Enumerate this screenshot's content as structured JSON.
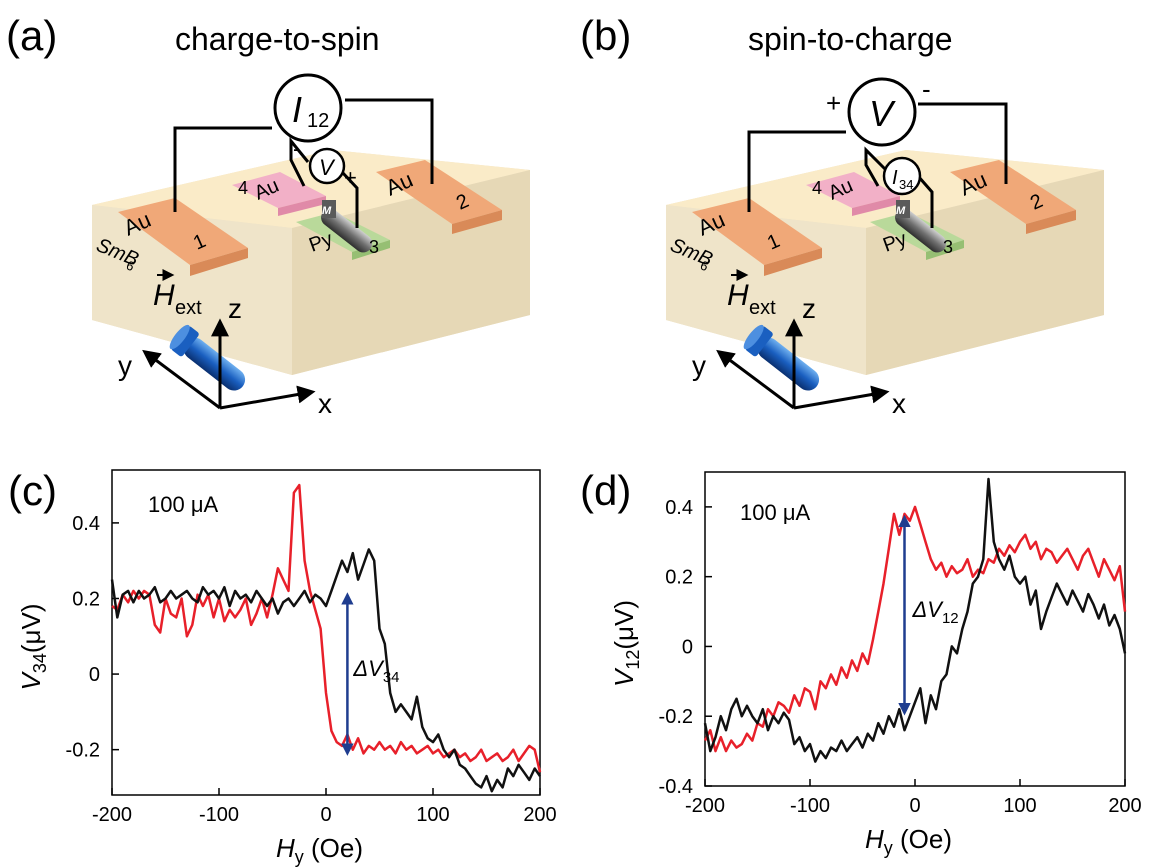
{
  "panels": {
    "a": {
      "letter": "(a)",
      "title": "charge-to-spin",
      "meter_main": {
        "symbol": "I",
        "sub": "12"
      },
      "meter_small": {
        "symbol": "V",
        "sub": ""
      },
      "small_plus": "+",
      "small_minus": "-",
      "substrate_label": {
        "base": "SmB",
        "sub": "6"
      },
      "au_label": "Au",
      "py_label": "Py",
      "m_label": "M",
      "field_label": {
        "base": "H",
        "sub": "ext"
      },
      "contacts": {
        "c1": "1",
        "c2": "2",
        "c3": "3",
        "c4": "4"
      },
      "axes": {
        "z": "z",
        "y": "y",
        "x": "x"
      }
    },
    "b": {
      "letter": "(b)",
      "title": "spin-to-charge",
      "meter_main": {
        "symbol": "V",
        "sub": ""
      },
      "main_plus": "+",
      "main_minus": "-",
      "meter_small": {
        "symbol": "I",
        "sub": "34"
      },
      "substrate_label": {
        "base": "SmB",
        "sub": "6"
      },
      "au_label": "Au",
      "py_label": "Py",
      "m_label": "M",
      "field_label": {
        "base": "H",
        "sub": "ext"
      },
      "contacts": {
        "c1": "1",
        "c2": "2",
        "c3": "3",
        "c4": "4"
      },
      "axes": {
        "z": "z",
        "y": "y",
        "x": "x"
      }
    },
    "c": {
      "letter": "(c)"
    },
    "d": {
      "letter": "(d)"
    }
  },
  "colors": {
    "red_series": "#e8202a",
    "black_series": "#111111",
    "arrow": "#1f3d8f",
    "au": "#f0a878",
    "py": "#b9d99a",
    "substrate_top": "#faebc8",
    "substrate_side": "#ece0c0"
  },
  "chart_data": [
    {
      "type": "line",
      "annotation": "100 μA",
      "delta_label": {
        "base": "ΔV",
        "sub": "34"
      },
      "xlabel": {
        "base": "H",
        "sub": "y",
        "unit": " (Oe)"
      },
      "ylabel": {
        "base": "V",
        "sub": "34",
        "unit": "(μV)"
      },
      "xlim": [
        -200,
        200
      ],
      "ylim": [
        -0.32,
        0.54
      ],
      "xticks": [
        -200,
        -100,
        0,
        100,
        200
      ],
      "xtick_labels": [
        "-200",
        "-100",
        "0",
        "100",
        "200"
      ],
      "yticks": [
        -0.2,
        0,
        0.2,
        0.4
      ],
      "ytick_labels": [
        "-0.2",
        "0",
        "0.2",
        "0.4"
      ],
      "delta_arrow": {
        "x": 20,
        "y_from": 0.2,
        "y_to": -0.2
      },
      "series": [
        {
          "color": "red",
          "x": [
            -200,
            -195,
            -190,
            -185,
            -180,
            -175,
            -170,
            -165,
            -160,
            -155,
            -150,
            -145,
            -140,
            -135,
            -130,
            -125,
            -120,
            -115,
            -110,
            -105,
            -100,
            -95,
            -90,
            -85,
            -80,
            -75,
            -70,
            -65,
            -60,
            -55,
            -50,
            -45,
            -40,
            -35,
            -30,
            -25,
            -20,
            -15,
            -10,
            -5,
            0,
            5,
            10,
            15,
            20,
            25,
            30,
            35,
            40,
            45,
            50,
            55,
            60,
            65,
            70,
            75,
            80,
            85,
            90,
            95,
            100,
            105,
            110,
            115,
            120,
            125,
            130,
            135,
            140,
            145,
            150,
            155,
            160,
            165,
            170,
            175,
            180,
            185,
            190,
            195,
            200
          ],
          "y": [
            0.18,
            0.17,
            0.21,
            0.19,
            0.22,
            0.2,
            0.22,
            0.21,
            0.13,
            0.11,
            0.2,
            0.16,
            0.15,
            0.2,
            0.1,
            0.13,
            0.21,
            0.18,
            0.21,
            0.15,
            0.2,
            0.14,
            0.17,
            0.15,
            0.17,
            0.2,
            0.13,
            0.16,
            0.2,
            0.15,
            0.21,
            0.28,
            0.25,
            0.22,
            0.48,
            0.5,
            0.3,
            0.22,
            0.17,
            0.12,
            -0.05,
            -0.15,
            -0.18,
            -0.19,
            -0.16,
            -0.2,
            -0.17,
            -0.21,
            -0.19,
            -0.2,
            -0.18,
            -0.2,
            -0.19,
            -0.21,
            -0.18,
            -0.2,
            -0.19,
            -0.21,
            -0.2,
            -0.19,
            -0.21,
            -0.2,
            -0.22,
            -0.21,
            -0.2,
            -0.22,
            -0.21,
            -0.23,
            -0.22,
            -0.2,
            -0.23,
            -0.22,
            -0.21,
            -0.23,
            -0.22,
            -0.2,
            -0.23,
            -0.21,
            -0.19,
            -0.2,
            -0.26
          ]
        },
        {
          "color": "black",
          "x": [
            -200,
            -195,
            -190,
            -185,
            -180,
            -175,
            -170,
            -165,
            -160,
            -155,
            -150,
            -145,
            -140,
            -135,
            -130,
            -125,
            -120,
            -115,
            -110,
            -105,
            -100,
            -95,
            -90,
            -85,
            -80,
            -75,
            -70,
            -65,
            -60,
            -55,
            -50,
            -45,
            -40,
            -35,
            -30,
            -25,
            -20,
            -15,
            -10,
            -5,
            0,
            5,
            10,
            15,
            20,
            25,
            30,
            35,
            40,
            45,
            50,
            55,
            60,
            65,
            70,
            75,
            80,
            85,
            90,
            95,
            100,
            105,
            110,
            115,
            120,
            125,
            130,
            135,
            140,
            145,
            150,
            155,
            160,
            165,
            170,
            175,
            180,
            185,
            190,
            195,
            200
          ],
          "y": [
            0.25,
            0.15,
            0.21,
            0.22,
            0.19,
            0.22,
            0.2,
            0.21,
            0.23,
            0.19,
            0.2,
            0.22,
            0.2,
            0.21,
            0.22,
            0.2,
            0.19,
            0.23,
            0.21,
            0.22,
            0.2,
            0.23,
            0.18,
            0.22,
            0.2,
            0.21,
            0.19,
            0.22,
            0.2,
            0.18,
            0.2,
            0.16,
            0.19,
            0.2,
            0.18,
            0.2,
            0.22,
            0.19,
            0.21,
            0.2,
            0.18,
            0.22,
            0.26,
            0.3,
            0.27,
            0.32,
            0.25,
            0.29,
            0.33,
            0.3,
            0.12,
            0.08,
            -0.05,
            -0.1,
            -0.08,
            -0.1,
            -0.12,
            -0.06,
            -0.14,
            -0.17,
            -0.18,
            -0.16,
            -0.2,
            -0.22,
            -0.2,
            -0.24,
            -0.25,
            -0.27,
            -0.29,
            -0.3,
            -0.27,
            -0.31,
            -0.28,
            -0.3,
            -0.25,
            -0.27,
            -0.24,
            -0.26,
            -0.28,
            -0.25,
            -0.27
          ]
        }
      ]
    },
    {
      "type": "line",
      "annotation": "100 μA",
      "delta_label": {
        "base": "ΔV",
        "sub": "12"
      },
      "xlabel": {
        "base": "H",
        "sub": "y",
        "unit": " (Oe)"
      },
      "ylabel": {
        "base": "V",
        "sub": "12",
        "unit": "(μV)"
      },
      "xlim": [
        -200,
        200
      ],
      "ylim": [
        -0.4,
        0.5
      ],
      "xticks": [
        -200,
        -100,
        0,
        100,
        200
      ],
      "xtick_labels": [
        "-200",
        "-100",
        "0",
        "100",
        "200"
      ],
      "yticks": [
        -0.4,
        -0.2,
        0,
        0.2,
        0.4
      ],
      "ytick_labels": [
        "-0.4",
        "-0.2",
        "0",
        "0.2",
        "0.4"
      ],
      "delta_arrow": {
        "x": -10,
        "y_from": 0.36,
        "y_to": -0.18
      },
      "series": [
        {
          "color": "red",
          "x": [
            -200,
            -195,
            -190,
            -185,
            -180,
            -175,
            -170,
            -165,
            -160,
            -155,
            -150,
            -145,
            -140,
            -135,
            -130,
            -125,
            -120,
            -115,
            -110,
            -105,
            -100,
            -95,
            -90,
            -85,
            -80,
            -75,
            -70,
            -65,
            -60,
            -55,
            -50,
            -45,
            -40,
            -35,
            -30,
            -25,
            -20,
            -15,
            -10,
            -5,
            0,
            5,
            10,
            15,
            20,
            25,
            30,
            35,
            40,
            45,
            50,
            55,
            60,
            65,
            70,
            75,
            80,
            85,
            90,
            95,
            100,
            105,
            110,
            115,
            120,
            125,
            130,
            135,
            140,
            145,
            150,
            155,
            160,
            165,
            170,
            175,
            180,
            185,
            190,
            195,
            200
          ],
          "y": [
            -0.27,
            -0.24,
            -0.3,
            -0.26,
            -0.3,
            -0.27,
            -0.29,
            -0.28,
            -0.25,
            -0.27,
            -0.22,
            -0.23,
            -0.18,
            -0.2,
            -0.16,
            -0.17,
            -0.19,
            -0.14,
            -0.17,
            -0.12,
            -0.13,
            -0.18,
            -0.1,
            -0.12,
            -0.08,
            -0.11,
            -0.06,
            -0.09,
            -0.04,
            -0.07,
            -0.02,
            -0.05,
            0.02,
            0.1,
            0.18,
            0.28,
            0.38,
            0.32,
            0.38,
            0.36,
            0.4,
            0.35,
            0.3,
            0.25,
            0.22,
            0.24,
            0.2,
            0.23,
            0.21,
            0.22,
            0.25,
            0.2,
            0.22,
            0.21,
            0.25,
            0.24,
            0.28,
            0.26,
            0.29,
            0.27,
            0.3,
            0.32,
            0.28,
            0.3,
            0.25,
            0.28,
            0.27,
            0.24,
            0.26,
            0.28,
            0.25,
            0.22,
            0.26,
            0.28,
            0.24,
            0.2,
            0.25,
            0.22,
            0.19,
            0.23,
            0.1
          ]
        },
        {
          "color": "black",
          "x": [
            -200,
            -195,
            -190,
            -185,
            -180,
            -175,
            -170,
            -165,
            -160,
            -155,
            -150,
            -145,
            -140,
            -135,
            -130,
            -125,
            -120,
            -115,
            -110,
            -105,
            -100,
            -95,
            -90,
            -85,
            -80,
            -75,
            -70,
            -65,
            -60,
            -55,
            -50,
            -45,
            -40,
            -35,
            -30,
            -25,
            -20,
            -15,
            -10,
            -5,
            0,
            5,
            10,
            15,
            20,
            25,
            30,
            35,
            40,
            45,
            50,
            55,
            60,
            65,
            70,
            75,
            80,
            85,
            90,
            95,
            100,
            105,
            110,
            115,
            120,
            125,
            130,
            135,
            140,
            145,
            150,
            155,
            160,
            165,
            170,
            175,
            180,
            185,
            190,
            195,
            200
          ],
          "y": [
            -0.22,
            -0.3,
            -0.26,
            -0.2,
            -0.24,
            -0.18,
            -0.15,
            -0.2,
            -0.17,
            -0.2,
            -0.22,
            -0.18,
            -0.24,
            -0.2,
            -0.22,
            -0.19,
            -0.21,
            -0.28,
            -0.26,
            -0.3,
            -0.28,
            -0.33,
            -0.3,
            -0.32,
            -0.29,
            -0.3,
            -0.27,
            -0.3,
            -0.28,
            -0.26,
            -0.29,
            -0.25,
            -0.27,
            -0.22,
            -0.25,
            -0.2,
            -0.23,
            -0.18,
            -0.24,
            -0.2,
            -0.16,
            -0.12,
            -0.22,
            -0.14,
            -0.18,
            -0.1,
            -0.08,
            0.0,
            -0.02,
            0.05,
            0.1,
            0.18,
            0.2,
            0.25,
            0.48,
            0.3,
            0.25,
            0.22,
            0.26,
            0.2,
            0.18,
            0.2,
            0.12,
            0.16,
            0.05,
            0.1,
            0.14,
            0.18,
            0.15,
            0.12,
            0.16,
            0.13,
            0.1,
            0.15,
            0.12,
            0.08,
            0.12,
            0.06,
            0.09,
            0.05,
            -0.02
          ]
        }
      ]
    }
  ]
}
